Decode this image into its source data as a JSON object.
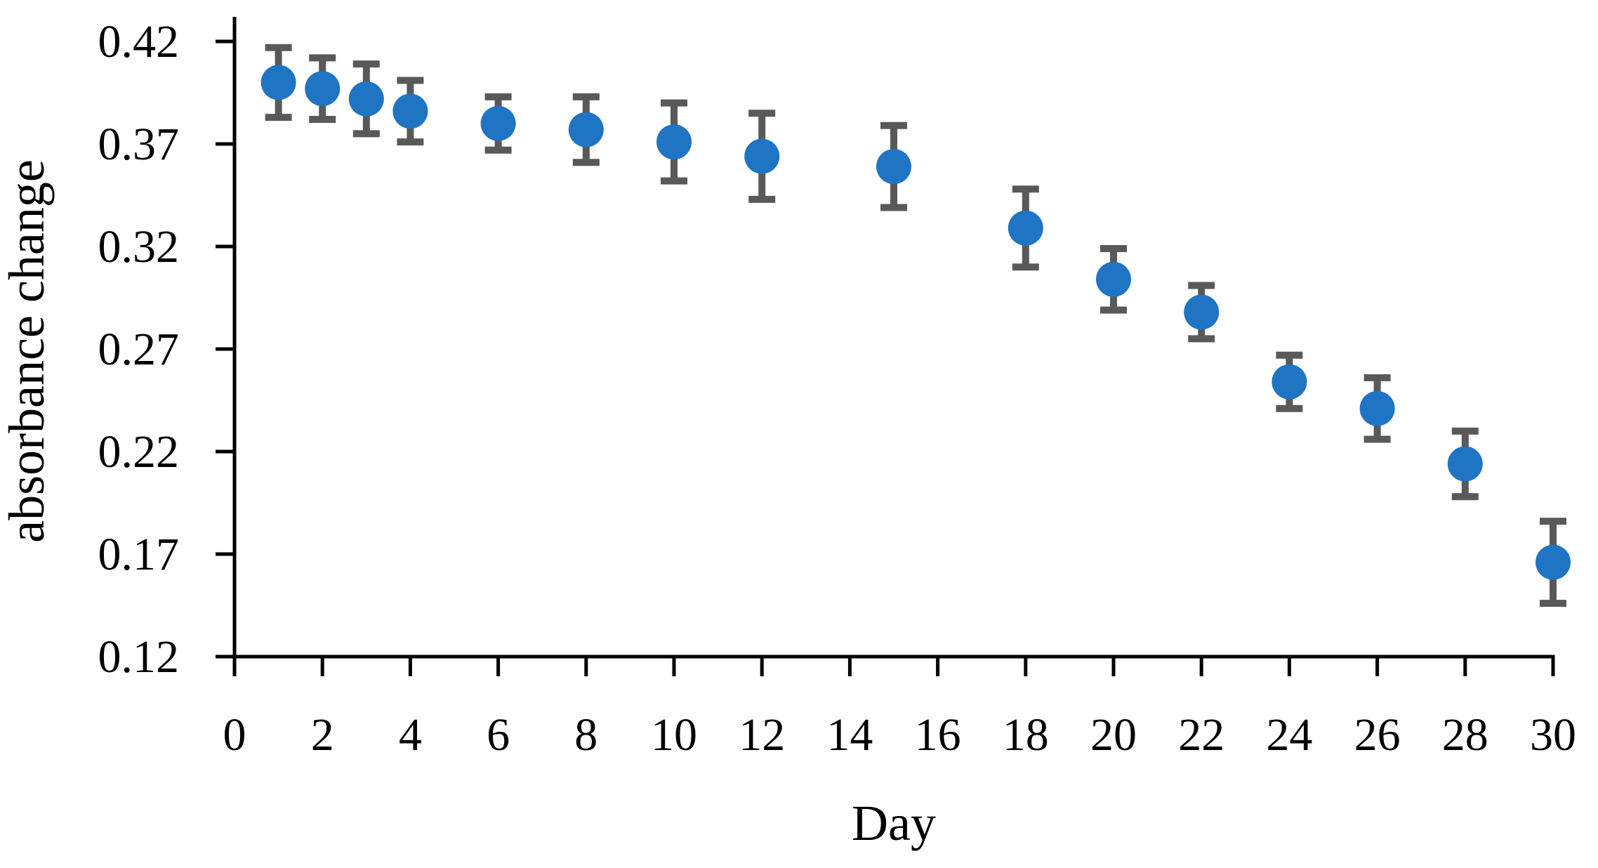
{
  "figure": {
    "background": "#FFFFFF"
  },
  "chart_data": {
    "type": "scatter",
    "title": "",
    "xlabel": "Day",
    "ylabel": "absorbance change",
    "x": [
      1,
      2,
      3,
      4,
      6,
      8,
      10,
      12,
      15,
      18,
      20,
      22,
      24,
      26,
      28,
      30
    ],
    "y": [
      0.4,
      0.397,
      0.392,
      0.386,
      0.38,
      0.377,
      0.371,
      0.364,
      0.359,
      0.329,
      0.304,
      0.288,
      0.254,
      0.241,
      0.214,
      0.166
    ],
    "yerr": [
      0.017,
      0.015,
      0.017,
      0.015,
      0.013,
      0.016,
      0.019,
      0.021,
      0.02,
      0.019,
      0.015,
      0.013,
      0.013,
      0.015,
      0.016,
      0.02
    ],
    "xlim": [
      0,
      30
    ],
    "ylim": [
      0.12,
      0.432
    ],
    "xticks": [
      0,
      2,
      4,
      6,
      8,
      10,
      12,
      14,
      16,
      18,
      20,
      22,
      24,
      26,
      28,
      30
    ],
    "xtick_labels": [
      "0",
      "2",
      "4",
      "6",
      "8",
      "10",
      "12",
      "14",
      "16",
      "18",
      "20",
      "22",
      "24",
      "26",
      "28",
      "30"
    ],
    "yticks": [
      0.12,
      0.17,
      0.22,
      0.27,
      0.32,
      0.37,
      0.42
    ],
    "ytick_labels": [
      "0.12",
      "0.17",
      "0.22",
      "0.27",
      "0.32",
      "0.37",
      "0.42"
    ],
    "grid": false,
    "legend": null,
    "marker": "circle",
    "colors": {
      "marker": "#1F74C4",
      "errorbar": "#595959",
      "axis": "#000000",
      "text": "#000000",
      "background": "#FFFFFF"
    }
  }
}
